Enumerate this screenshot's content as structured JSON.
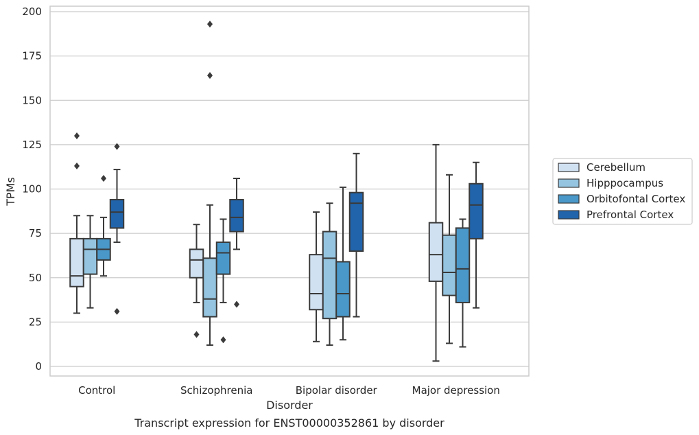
{
  "chart_data": {
    "type": "box",
    "xlabel": "Disorder",
    "ylabel": "TPMs",
    "caption": "Transcript expression for ENST00000352861 by disorder",
    "ylim": [
      -5,
      202
    ],
    "yticks": [
      0,
      25,
      50,
      75,
      100,
      125,
      150,
      175,
      200
    ],
    "grid": true,
    "legend_position": "right",
    "categories": [
      "Control",
      "Schizophrenia",
      "Bipolar disorder",
      "Major depression"
    ],
    "series": [
      {
        "name": "Cerebellum",
        "color": "#d0e1f2",
        "boxes": [
          {
            "whisker_low": 30,
            "q1": 45,
            "median": 51,
            "q3": 72,
            "whisker_high": 85,
            "outliers": [
              130,
              113
            ]
          },
          {
            "whisker_low": 36,
            "q1": 50,
            "median": 60,
            "q3": 66,
            "whisker_high": 80,
            "outliers": [
              18
            ]
          },
          {
            "whisker_low": 14,
            "q1": 32,
            "median": 41,
            "q3": 63,
            "whisker_high": 87,
            "outliers": []
          },
          {
            "whisker_low": 3,
            "q1": 48,
            "median": 63,
            "q3": 81,
            "whisker_high": 125,
            "outliers": []
          }
        ]
      },
      {
        "name": "Hipppocampus",
        "color": "#94c4df",
        "boxes": [
          {
            "whisker_low": 33,
            "q1": 52,
            "median": 66,
            "q3": 72,
            "whisker_high": 85,
            "outliers": []
          },
          {
            "whisker_low": 12,
            "q1": 28,
            "median": 38,
            "q3": 61,
            "whisker_high": 91,
            "outliers": [
              193,
              164
            ]
          },
          {
            "whisker_low": 12,
            "q1": 27,
            "median": 61,
            "q3": 76,
            "whisker_high": 92,
            "outliers": []
          },
          {
            "whisker_low": 13,
            "q1": 40,
            "median": 53,
            "q3": 74,
            "whisker_high": 108,
            "outliers": []
          }
        ]
      },
      {
        "name": "Orbitofontal Cortex",
        "color": "#4a98c9",
        "boxes": [
          {
            "whisker_low": 51,
            "q1": 60,
            "median": 66,
            "q3": 72,
            "whisker_high": 84,
            "outliers": [
              106
            ]
          },
          {
            "whisker_low": 36,
            "q1": 52,
            "median": 64,
            "q3": 70,
            "whisker_high": 83,
            "outliers": [
              15
            ]
          },
          {
            "whisker_low": 15,
            "q1": 28,
            "median": 41,
            "q3": 59,
            "whisker_high": 101,
            "outliers": []
          },
          {
            "whisker_low": 11,
            "q1": 36,
            "median": 55,
            "q3": 78,
            "whisker_high": 83,
            "outliers": []
          }
        ]
      },
      {
        "name": "Prefrontal Cortex",
        "color": "#2164ab",
        "boxes": [
          {
            "whisker_low": 70,
            "q1": 78,
            "median": 87,
            "q3": 94,
            "whisker_high": 111,
            "outliers": [
              124,
              31
            ]
          },
          {
            "whisker_low": 66,
            "q1": 76,
            "median": 84,
            "q3": 94,
            "whisker_high": 106,
            "outliers": [
              35
            ]
          },
          {
            "whisker_low": 28,
            "q1": 65,
            "median": 92,
            "q3": 98,
            "whisker_high": 120,
            "outliers": []
          },
          {
            "whisker_low": 33,
            "q1": 72,
            "median": 91,
            "q3": 103,
            "whisker_high": 115,
            "outliers": []
          }
        ]
      }
    ]
  }
}
